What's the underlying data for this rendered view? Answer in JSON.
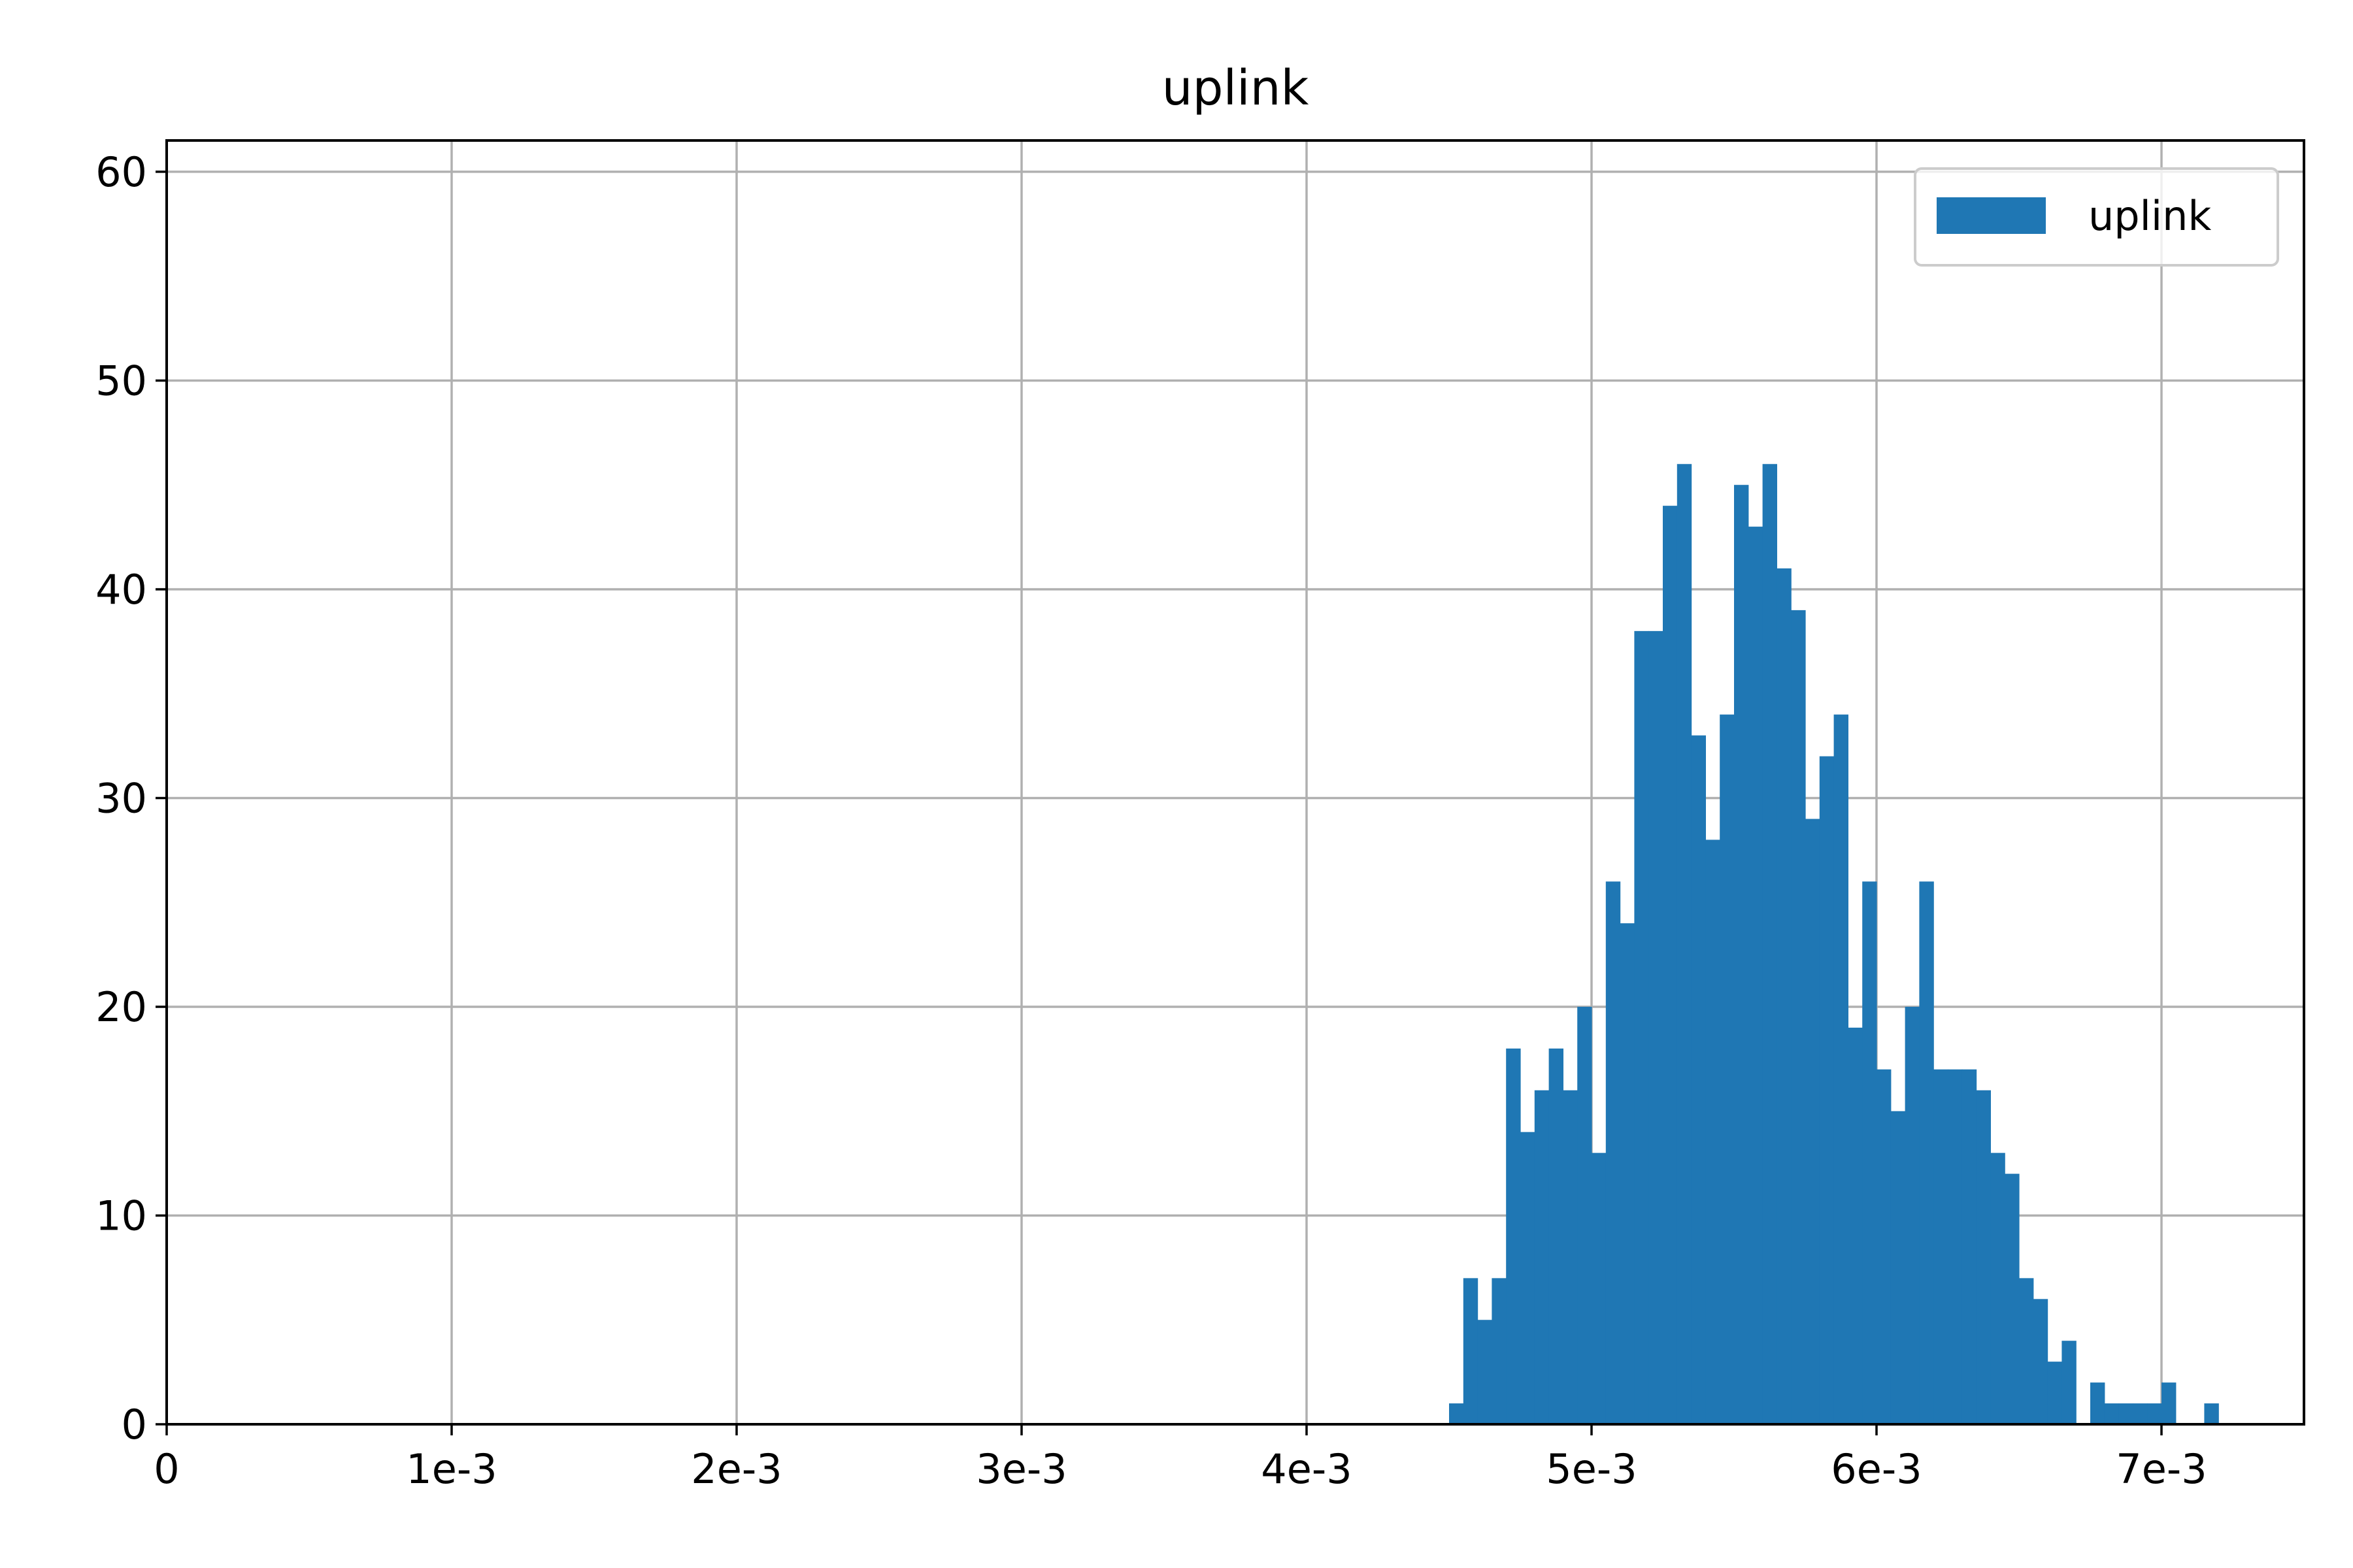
{
  "chart_data": {
    "type": "bar",
    "title": "uplink",
    "xlabel": "",
    "ylabel": "",
    "xlim": [
      0,
      0.0075
    ],
    "ylim": [
      0,
      61.5
    ],
    "grid": true,
    "legend_position": "top-right",
    "colors": {
      "bar": "#1f77b4",
      "grid": "#b0b0b0",
      "axis": "#000000"
    },
    "x_ticks": [
      {
        "value": 0,
        "label": "0"
      },
      {
        "value": 0.001,
        "label": "1e-3"
      },
      {
        "value": 0.002,
        "label": "2e-3"
      },
      {
        "value": 0.003,
        "label": "3e-3"
      },
      {
        "value": 0.004,
        "label": "4e-3"
      },
      {
        "value": 0.005,
        "label": "5e-3"
      },
      {
        "value": 0.006,
        "label": "6e-3"
      },
      {
        "value": 0.007,
        "label": "7e-3"
      }
    ],
    "y_ticks": [
      {
        "value": 0,
        "label": "0"
      },
      {
        "value": 10,
        "label": "10"
      },
      {
        "value": 20,
        "label": "20"
      },
      {
        "value": 30,
        "label": "30"
      },
      {
        "value": 40,
        "label": "40"
      },
      {
        "value": 50,
        "label": "50"
      },
      {
        "value": 60,
        "label": "60"
      }
    ],
    "series": [
      {
        "name": "uplink",
        "bin_start": 0.0045,
        "bin_width": 5e-05,
        "counts": [
          1,
          7,
          5,
          7,
          18,
          14,
          16,
          18,
          16,
          20,
          13,
          26,
          24,
          38,
          38,
          44,
          46,
          33,
          28,
          34,
          45,
          43,
          46,
          41,
          39,
          29,
          32,
          34,
          19,
          26,
          17,
          15,
          20,
          26,
          17,
          17,
          17,
          16,
          13,
          12,
          7,
          6,
          3,
          4,
          0,
          2,
          1,
          1,
          1,
          1,
          2,
          0,
          0,
          1
        ]
      }
    ]
  }
}
